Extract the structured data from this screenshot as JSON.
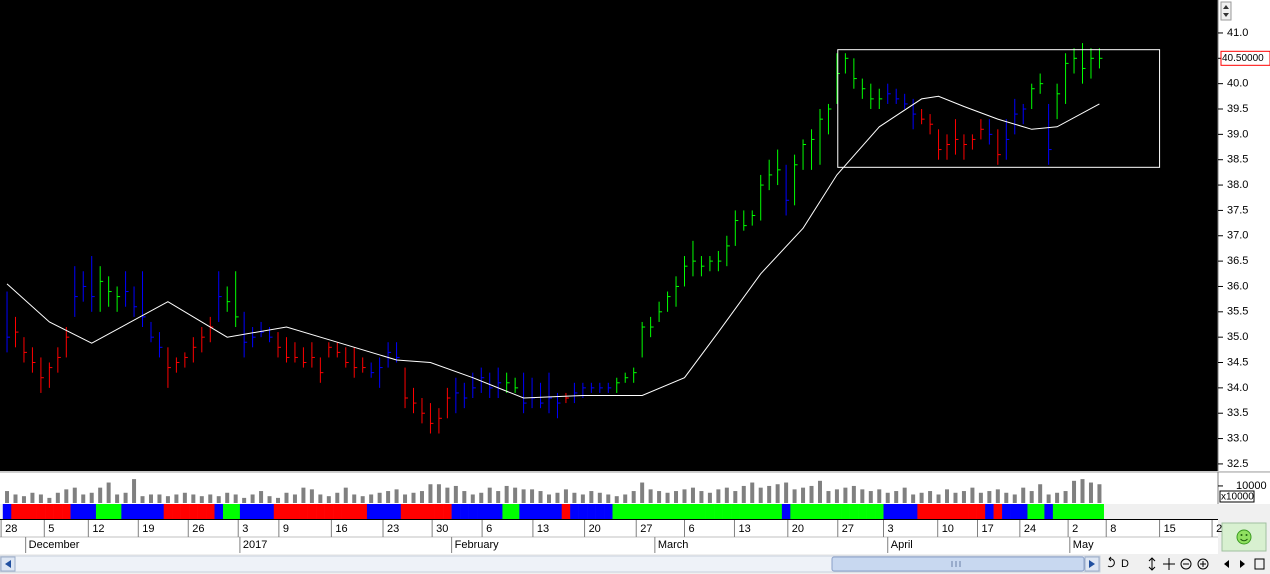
{
  "chart_data": {
    "type": "ohlc",
    "xlim": [
      -0.83,
      143
    ],
    "ylim": [
      32.38,
      41.65
    ],
    "yticks": [
      32.5,
      {
        "value": 33,
        "label": "33.0"
      },
      33.5,
      {
        "value": 34,
        "label": "34.0"
      },
      34.5,
      {
        "value": 35,
        "label": "35.0"
      },
      35.5,
      {
        "value": 36,
        "label": "36.0"
      },
      36.5,
      {
        "value": 37,
        "label": "37.0"
      },
      37.5,
      {
        "value": 38,
        "label": "38.0"
      },
      38.5,
      {
        "value": 39,
        "label": "39.0"
      },
      39.5,
      {
        "value": 40,
        "label": "40.0"
      },
      40.5,
      {
        "value": 41,
        "label": "41.0"
      }
    ],
    "high": [
      35.9,
      35.4,
      35.0,
      34.8,
      34.6,
      34.5,
      34.8,
      35.2,
      36.4,
      36.3,
      36.6,
      36.4,
      36.2,
      36.0,
      36.3,
      36.0,
      36.3,
      35.3,
      35.1,
      34.8,
      34.6,
      34.7,
      35.0,
      35.2,
      35.4,
      36.3,
      36.0,
      36.3,
      35.5,
      35.2,
      35.3,
      35.2,
      35.1,
      35.0,
      34.9,
      34.8,
      34.9,
      34.6,
      34.9,
      34.9,
      34.8,
      34.8,
      34.6,
      34.5,
      34.6,
      34.9,
      34.9,
      34.4,
      34.0,
      33.8,
      33.7,
      33.6,
      34.0,
      34.2,
      34.1,
      34.3,
      34.4,
      34.3,
      34.4,
      34.3,
      34.2,
      34.3,
      34.2,
      34.1,
      34.3,
      33.9,
      33.9,
      34.1,
      34.1,
      34.1,
      34.1,
      34.1,
      34.2,
      34.3,
      34.4,
      35.3,
      35.4,
      35.7,
      35.9,
      36.2,
      36.6,
      36.9,
      36.6,
      36.6,
      36.7,
      37.0,
      37.5,
      37.5,
      37.5,
      38.2,
      38.5,
      38.7,
      38.4,
      38.6,
      38.9,
      39.1,
      39.5,
      39.6,
      40.6,
      40.6,
      40.5,
      40.1,
      40.0,
      39.9,
      40.0,
      39.9,
      39.8,
      39.7,
      39.5,
      39.4,
      39.1,
      39.0,
      39.3,
      39.0,
      39.0,
      39.3,
      39.3,
      39.1,
      39.3,
      39.7,
      39.6,
      40.0,
      40.2,
      39.6,
      40.0,
      40.6,
      40.7,
      40.8,
      40.7,
      40.7
    ],
    "low": [
      34.7,
      34.8,
      34.5,
      34.3,
      33.9,
      34.0,
      34.3,
      34.6,
      35.4,
      35.7,
      35.5,
      35.5,
      35.6,
      35.5,
      35.6,
      35.4,
      35.2,
      34.9,
      34.6,
      34.0,
      34.3,
      34.4,
      34.5,
      34.7,
      34.9,
      35.3,
      35.5,
      35.2,
      34.6,
      34.8,
      35.0,
      34.9,
      34.6,
      34.5,
      34.5,
      34.4,
      34.4,
      34.1,
      34.6,
      34.6,
      34.4,
      34.2,
      34.3,
      34.2,
      34.0,
      34.4,
      34.5,
      33.6,
      33.5,
      33.3,
      33.1,
      33.1,
      33.4,
      33.5,
      33.6,
      33.8,
      33.9,
      33.8,
      33.8,
      33.9,
      33.9,
      33.5,
      33.6,
      33.6,
      33.5,
      33.4,
      33.7,
      33.7,
      33.8,
      33.9,
      33.9,
      33.9,
      33.9,
      34.1,
      34.1,
      34.6,
      35.0,
      35.3,
      35.5,
      35.6,
      36.0,
      36.2,
      36.2,
      36.3,
      36.3,
      36.4,
      36.8,
      37.1,
      37.2,
      37.3,
      37.9,
      38.0,
      37.4,
      37.6,
      38.3,
      38.3,
      38.4,
      39.0,
      39.6,
      40.2,
      39.9,
      39.7,
      39.5,
      39.5,
      39.6,
      39.6,
      39.5,
      39.1,
      39.2,
      39.0,
      38.5,
      38.5,
      38.6,
      38.5,
      38.7,
      38.9,
      38.8,
      38.4,
      38.5,
      39.0,
      39.2,
      39.5,
      39.8,
      38.4,
      39.3,
      39.6,
      40.2,
      40.0,
      40.1,
      40.3
    ],
    "close": [
      35.0,
      35.1,
      34.7,
      34.5,
      34.2,
      34.4,
      34.6,
      35.0,
      35.8,
      36.0,
      35.8,
      36.1,
      35.9,
      35.8,
      35.9,
      35.6,
      35.4,
      35.0,
      34.8,
      34.4,
      34.5,
      34.6,
      34.8,
      35.0,
      35.2,
      35.8,
      35.7,
      35.4,
      34.9,
      35.0,
      35.1,
      35.0,
      34.8,
      34.6,
      34.6,
      34.5,
      34.6,
      34.3,
      34.8,
      34.7,
      34.5,
      34.4,
      34.4,
      34.3,
      34.4,
      34.7,
      34.6,
      33.8,
      33.7,
      33.5,
      33.3,
      33.4,
      33.8,
      33.9,
      33.8,
      34.0,
      34.2,
      34.0,
      34.1,
      34.1,
      34.0,
      33.7,
      33.8,
      33.7,
      33.8,
      33.7,
      33.8,
      33.9,
      34.0,
      34.0,
      34.0,
      34.0,
      34.1,
      34.2,
      34.3,
      35.2,
      35.2,
      35.5,
      35.8,
      36.0,
      36.4,
      36.5,
      36.4,
      36.5,
      36.5,
      36.8,
      37.3,
      37.2,
      37.4,
      38.0,
      38.2,
      38.3,
      37.7,
      38.4,
      38.8,
      38.9,
      39.3,
      39.5,
      40.2,
      40.5,
      40.1,
      39.9,
      39.7,
      39.7,
      39.8,
      39.7,
      39.6,
      39.4,
      39.3,
      39.2,
      38.7,
      38.8,
      38.9,
      38.8,
      38.9,
      39.1,
      39.0,
      38.6,
      38.9,
      39.4,
      39.5,
      39.9,
      40.0,
      38.7,
      39.8,
      40.4,
      40.5,
      40.3,
      40.5,
      40.5
    ],
    "colors": [
      "blue",
      "red",
      "red",
      "red",
      "red",
      "red",
      "red",
      "red",
      "blue",
      "blue",
      "blue",
      "lime",
      "lime",
      "lime",
      "blue",
      "blue",
      "blue",
      "blue",
      "blue",
      "red",
      "red",
      "red",
      "red",
      "red",
      "red",
      "blue",
      "lime",
      "lime",
      "blue",
      "blue",
      "blue",
      "blue",
      "red",
      "red",
      "red",
      "red",
      "red",
      "red",
      "red",
      "red",
      "red",
      "red",
      "red",
      "blue",
      "blue",
      "blue",
      "blue",
      "red",
      "red",
      "red",
      "red",
      "red",
      "red",
      "blue",
      "blue",
      "blue",
      "blue",
      "blue",
      "blue",
      "lime",
      "lime",
      "blue",
      "blue",
      "blue",
      "blue",
      "blue",
      "red",
      "blue",
      "blue",
      "blue",
      "blue",
      "blue",
      "lime",
      "lime",
      "lime",
      "lime",
      "lime",
      "lime",
      "lime",
      "lime",
      "lime",
      "lime",
      "lime",
      "lime",
      "lime",
      "lime",
      "lime",
      "lime",
      "lime",
      "lime",
      "lime",
      "lime",
      "blue",
      "lime",
      "lime",
      "lime",
      "lime",
      "lime",
      "lime",
      "lime",
      "lime",
      "lime",
      "lime",
      "lime",
      "blue",
      "blue",
      "blue",
      "blue",
      "red",
      "red",
      "red",
      "red",
      "red",
      "red",
      "red",
      "red",
      "blue",
      "red",
      "blue",
      "blue",
      "blue",
      "lime",
      "lime",
      "blue",
      "lime",
      "lime",
      "lime",
      "lime",
      "lime",
      "lime"
    ],
    "moving_average": {
      "color": "#ffffff",
      "x": [
        0,
        5,
        10,
        19,
        26,
        33,
        39,
        46,
        50,
        55,
        61,
        68,
        75,
        80,
        84,
        89,
        94,
        98,
        103,
        108,
        110,
        113,
        117,
        121,
        124,
        129
      ],
      "values": [
        36.05,
        35.3,
        34.88,
        35.7,
        35.0,
        35.2,
        34.9,
        34.55,
        34.5,
        34.2,
        33.8,
        33.85,
        33.85,
        34.2,
        35.1,
        36.25,
        37.15,
        38.2,
        39.15,
        39.7,
        39.75,
        39.55,
        39.3,
        39.1,
        39.15,
        39.6
      ]
    },
    "box": {
      "color": "#ffffff",
      "x": [
        98.1,
        136.1
      ],
      "y": [
        38.35,
        40.67
      ]
    },
    "last_price": {
      "value": 40.5,
      "label": "40.50000",
      "color": "#ff0000"
    },
    "volume": {
      "color": "#808080",
      "ylim": [
        0,
        17000
      ],
      "yticks": [
        10000
      ],
      "unit": "x10000",
      "values": [
        7000,
        5000,
        4000,
        6000,
        5000,
        3000,
        6000,
        8000,
        9000,
        5000,
        6000,
        9000,
        12000,
        5000,
        6000,
        14000,
        4000,
        5000,
        5000,
        4000,
        5000,
        6000,
        5000,
        4000,
        5000,
        4000,
        6000,
        5000,
        3000,
        5000,
        7000,
        4000,
        3000,
        6000,
        5000,
        9000,
        8000,
        5000,
        4000,
        6000,
        9000,
        5000,
        4000,
        5000,
        6000,
        7000,
        8000,
        5000,
        6000,
        7000,
        11000,
        11000,
        9000,
        10000,
        7000,
        5000,
        6000,
        9000,
        7000,
        10000,
        9000,
        8000,
        8000,
        7000,
        5000,
        6000,
        8000,
        6000,
        5000,
        7000,
        6000,
        5000,
        4000,
        5000,
        7000,
        12000,
        8000,
        7000,
        6000,
        7000,
        8000,
        9000,
        7000,
        6000,
        8000,
        9000,
        7000,
        10000,
        12000,
        9000,
        10000,
        11000,
        12000,
        8000,
        9000,
        10000,
        13000,
        7000,
        8000,
        9000,
        10000,
        8000,
        7000,
        8000,
        6000,
        7000,
        9000,
        5000,
        6000,
        7000,
        5000,
        8000,
        6000,
        7000,
        9000,
        6000,
        7000,
        8000,
        6000,
        5000,
        9000,
        7000,
        11000,
        5000,
        6000,
        7000,
        13000,
        14000,
        12000,
        11000
      ]
    },
    "date_ticks": [
      {
        "value": -0.7,
        "label": "28"
      },
      {
        "value": 4.4,
        "label": "5"
      },
      {
        "value": 9.6,
        "label": "12"
      },
      {
        "value": 15.5,
        "label": "19"
      },
      {
        "value": 21.4,
        "label": "26"
      },
      {
        "value": 27.3,
        "label": "3"
      },
      {
        "value": 32.1,
        "label": "9"
      },
      {
        "value": 38.3,
        "label": "16"
      },
      {
        "value": 44.4,
        "label": "23"
      },
      {
        "value": 50.2,
        "label": "30"
      },
      {
        "value": 56.1,
        "label": "6"
      },
      {
        "value": 62.1,
        "label": "13"
      },
      {
        "value": 68.2,
        "label": "20"
      },
      {
        "value": 74.3,
        "label": "27"
      },
      {
        "value": 80.0,
        "label": "6"
      },
      {
        "value": 85.9,
        "label": "13"
      },
      {
        "value": 92.2,
        "label": "20"
      },
      {
        "value": 98.1,
        "label": "27"
      },
      {
        "value": 103.5,
        "label": "3"
      },
      {
        "value": 109.9,
        "label": "10"
      },
      {
        "value": 114.6,
        "label": "17"
      },
      {
        "value": 119.6,
        "label": "24"
      },
      {
        "value": 125.3,
        "label": "2"
      },
      {
        "value": 129.8,
        "label": "8"
      },
      {
        "value": 136.1,
        "label": "15"
      },
      {
        "value": 142.3,
        "label": "2"
      }
    ],
    "month_ticks": [
      {
        "value": 2.2,
        "label": "December"
      },
      {
        "value": 27.5,
        "label": "2017"
      },
      {
        "value": 52.5,
        "label": "February"
      },
      {
        "value": 76.5,
        "label": "March"
      },
      {
        "value": 104,
        "label": "April"
      },
      {
        "value": 125.5,
        "label": "May"
      }
    ]
  },
  "toolbar": {
    "labels": [
      "D"
    ]
  }
}
